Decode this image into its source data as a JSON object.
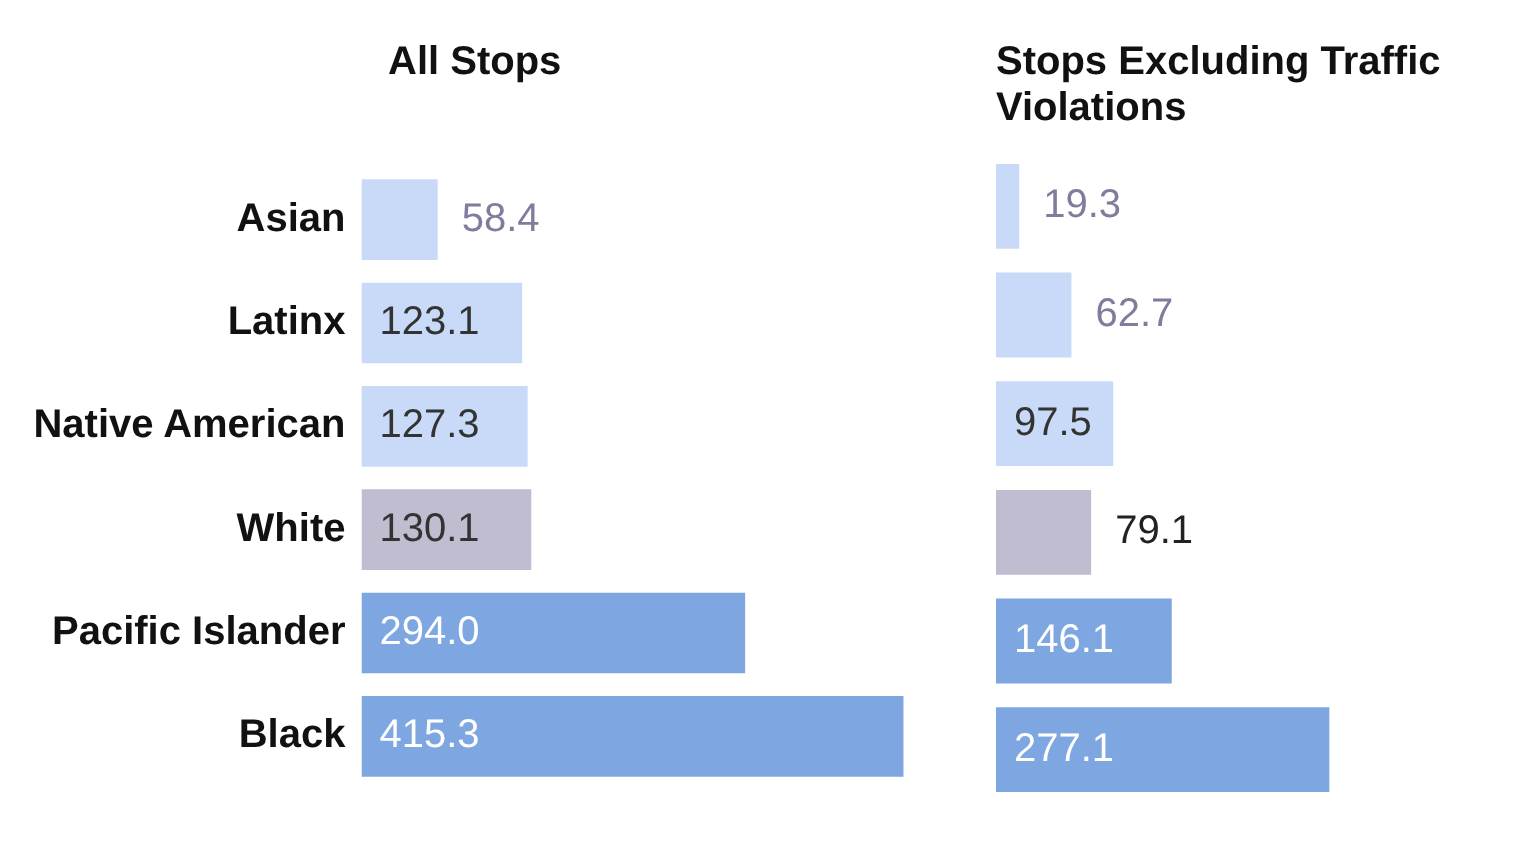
{
  "chart_data": [
    {
      "type": "bar",
      "orientation": "horizontal",
      "title": "All Stops",
      "categories": [
        "Asian",
        "Latinx",
        "Native American",
        "White",
        "Pacific Islander",
        "Black"
      ],
      "values": [
        58.4,
        123.1,
        127.3,
        130.1,
        294.0,
        415.3
      ],
      "colors": [
        "#c9daf8",
        "#c9daf8",
        "#c9daf8",
        "#c0bdd0",
        "#7ea6e0",
        "#7ea6e0"
      ],
      "value_labels": [
        "58.4",
        "123.1",
        "127.3",
        "130.1",
        "294.0",
        "415.3"
      ],
      "tick_labels": "y",
      "grid": false,
      "legend": false
    },
    {
      "type": "bar",
      "orientation": "horizontal",
      "title": "Stops Excluding Traffic Violations",
      "categories": [
        null,
        null,
        null,
        null,
        null,
        null
      ],
      "values": [
        19.3,
        62.7,
        97.5,
        79.1,
        146.1,
        277.1
      ],
      "colors": [
        "#c9daf8",
        "#c9daf8",
        "#c9daf8",
        "#c0bdd0",
        "#7ea6e0",
        "#7ea6e0"
      ],
      "value_labels": [
        "19.3",
        "62.7",
        "97.5",
        "79.1",
        "146.1",
        "277.1"
      ],
      "tick_labels": false,
      "grid": false,
      "legend": false
    }
  ]
}
